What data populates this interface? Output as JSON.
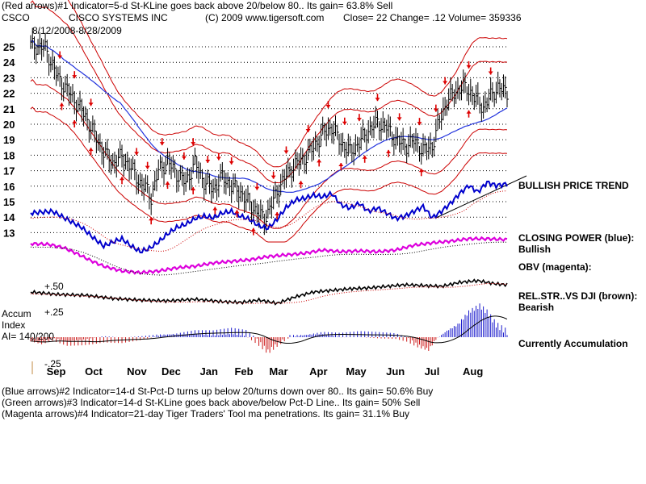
{
  "header": {
    "line1": "(Red arrows)#1 Indicator=5-d St-KLine goes back above 20/below 80.. Its gain= 63.8% Sell",
    "ticker": "CSCO",
    "company": "CISCO SYSTEMS INC",
    "copyright": "(C) 2009 www.tigersoft.com",
    "close": "Close=  22  Change= .12 Volume= 359336",
    "date_range": "8/12/2008-8/28/2009"
  },
  "footer": {
    "line1": "(Blue arrows)#2 Indicator=14-d St-Pct-D turns up below 20/turns down over 80.. Its gain= 50.6% Buy",
    "line2": "(Green arrows)#3 Indicator=14-d St-KLine goes back above/below Pct-D Line.. Its gain= 50% Sell",
    "line3": "(Magenta arrows)#4 Indicator=21-day Tiger Traders' Tool ma penetrations. Its gain= 31.1% Buy"
  },
  "labels": {
    "trend": "BULLISH PRICE TREND",
    "closing_power": "CLOSING POWER (blue):",
    "closing_power_state": "Bullish",
    "obv": "OBV (magenta):",
    "rel_str": "REL.STR..VS DJI (brown):",
    "rel_str_state": "Bearish",
    "accum": "Accum",
    "index": "Index",
    "ai": "AI= 140/200",
    "accum_state": "Currently Accumulation",
    "plus50": "+.50",
    "plus25": "+.25",
    "minus25": "-.25"
  },
  "colors": {
    "price": "#000000",
    "bands": "#cc0000",
    "ma": "#2233dd",
    "closing_power": "#0000cc",
    "obv": "#dd00dd",
    "accum_pos": "#1a1acc",
    "accum_neg": "#cc1a1a",
    "sell_arrow": "#dd0000",
    "buy_arrow": "#dd0000"
  },
  "chart_data": {
    "type": "line",
    "title": "CISCO SYSTEMS INC",
    "y_ticks": [
      25,
      24,
      23,
      22,
      21,
      20,
      19,
      18,
      17,
      16,
      15,
      14,
      13
    ],
    "ylim": [
      12.5,
      26.0
    ],
    "months": [
      "Sep",
      "Oct",
      "Nov",
      "Dec",
      "Jan",
      "Feb",
      "Mar",
      "Apr",
      "May",
      "Jun",
      "Jul",
      "Aug"
    ],
    "n_days": 262,
    "month_start_days": [
      14,
      35,
      58,
      77,
      98,
      117,
      136,
      158,
      178,
      200,
      221,
      242
    ],
    "price_knots": [
      [
        0,
        25.1
      ],
      [
        8,
        24.9
      ],
      [
        15,
        23.0
      ],
      [
        20,
        22.2
      ],
      [
        25,
        21.4
      ],
      [
        30,
        20.5
      ],
      [
        35,
        19.3
      ],
      [
        40,
        18.2
      ],
      [
        45,
        17.5
      ],
      [
        50,
        17.9
      ],
      [
        55,
        17.2
      ],
      [
        60,
        16.2
      ],
      [
        63,
        15.9
      ],
      [
        66,
        15.3
      ],
      [
        70,
        17.0
      ],
      [
        75,
        17.6
      ],
      [
        80,
        16.8
      ],
      [
        85,
        16.2
      ],
      [
        90,
        17.5
      ],
      [
        95,
        16.3
      ],
      [
        100,
        15.8
      ],
      [
        105,
        16.6
      ],
      [
        110,
        16.0
      ],
      [
        115,
        15.6
      ],
      [
        118,
        15.1
      ],
      [
        122,
        14.6
      ],
      [
        126,
        14.1
      ],
      [
        128,
        13.9
      ],
      [
        132,
        14.8
      ],
      [
        136,
        15.9
      ],
      [
        140,
        16.7
      ],
      [
        145,
        17.4
      ],
      [
        150,
        17.8
      ],
      [
        155,
        18.5
      ],
      [
        160,
        19.4
      ],
      [
        165,
        19.8
      ],
      [
        170,
        18.8
      ],
      [
        175,
        18.2
      ],
      [
        180,
        18.8
      ],
      [
        185,
        19.6
      ],
      [
        190,
        20.1
      ],
      [
        195,
        19.8
      ],
      [
        200,
        19.0
      ],
      [
        205,
        18.6
      ],
      [
        210,
        18.9
      ],
      [
        215,
        18.3
      ],
      [
        220,
        18.6
      ],
      [
        224,
        20.2
      ],
      [
        228,
        21.5
      ],
      [
        232,
        22.0
      ],
      [
        236,
        22.4
      ],
      [
        240,
        22.2
      ],
      [
        244,
        21.6
      ],
      [
        248,
        21.1
      ],
      [
        252,
        21.8
      ],
      [
        256,
        22.4
      ],
      [
        261,
        22.0
      ]
    ],
    "red_arrows_up_days": [
      16,
      24,
      33,
      58,
      64,
      72,
      84,
      89,
      97,
      103,
      110,
      124,
      133,
      140,
      152,
      163,
      172,
      180,
      190,
      202,
      213,
      222,
      227,
      240,
      252
    ],
    "buy_arrows_days": [
      17,
      24,
      33,
      50,
      66,
      75,
      89,
      101,
      113,
      122,
      135,
      148,
      158,
      170,
      183,
      196,
      214,
      240
    ],
    "closing_power_knots": [
      [
        0,
        264
      ],
      [
        12,
        262
      ],
      [
        20,
        272
      ],
      [
        28,
        282
      ],
      [
        35,
        296
      ],
      [
        40,
        305
      ],
      [
        45,
        300
      ],
      [
        50,
        296
      ],
      [
        55,
        305
      ],
      [
        60,
        312
      ],
      [
        65,
        308
      ],
      [
        70,
        300
      ],
      [
        75,
        290
      ],
      [
        80,
        282
      ],
      [
        85,
        278
      ],
      [
        90,
        271
      ],
      [
        95,
        268
      ],
      [
        100,
        270
      ],
      [
        105,
        264
      ],
      [
        110,
        262
      ],
      [
        115,
        268
      ],
      [
        120,
        272
      ],
      [
        125,
        280
      ],
      [
        130,
        283
      ],
      [
        135,
        272
      ],
      [
        140,
        257
      ],
      [
        145,
        248
      ],
      [
        150,
        246
      ],
      [
        155,
        242
      ],
      [
        160,
        244
      ],
      [
        165,
        240
      ],
      [
        170,
        254
      ],
      [
        175,
        258
      ],
      [
        180,
        252
      ],
      [
        185,
        262
      ],
      [
        190,
        258
      ],
      [
        195,
        264
      ],
      [
        200,
        271
      ],
      [
        205,
        268
      ],
      [
        210,
        262
      ],
      [
        215,
        256
      ],
      [
        220,
        270
      ],
      [
        225,
        262
      ],
      [
        230,
        252
      ],
      [
        235,
        240
      ],
      [
        240,
        230
      ],
      [
        245,
        238
      ],
      [
        250,
        226
      ],
      [
        255,
        230
      ],
      [
        261,
        228
      ]
    ],
    "obv_knots": [
      [
        0,
        302
      ],
      [
        10,
        303
      ],
      [
        18,
        307
      ],
      [
        25,
        314
      ],
      [
        32,
        322
      ],
      [
        40,
        330
      ],
      [
        50,
        336
      ],
      [
        60,
        338
      ],
      [
        70,
        336
      ],
      [
        80,
        332
      ],
      [
        90,
        330
      ],
      [
        100,
        326
      ],
      [
        110,
        324
      ],
      [
        120,
        322
      ],
      [
        130,
        318
      ],
      [
        140,
        316
      ],
      [
        150,
        314
      ],
      [
        160,
        310
      ],
      [
        170,
        312
      ],
      [
        180,
        311
      ],
      [
        190,
        312
      ],
      [
        200,
        310
      ],
      [
        210,
        304
      ],
      [
        220,
        301
      ],
      [
        230,
        299
      ],
      [
        240,
        296
      ],
      [
        250,
        296
      ],
      [
        261,
        297
      ]
    ],
    "relstr_knots": [
      [
        0,
        362
      ],
      [
        15,
        365
      ],
      [
        30,
        366
      ],
      [
        45,
        370
      ],
      [
        60,
        372
      ],
      [
        75,
        373
      ],
      [
        90,
        371
      ],
      [
        105,
        374
      ],
      [
        115,
        375
      ],
      [
        125,
        372
      ],
      [
        135,
        376
      ],
      [
        145,
        368
      ],
      [
        155,
        362
      ],
      [
        165,
        360
      ],
      [
        175,
        358
      ],
      [
        185,
        357
      ],
      [
        195,
        355
      ],
      [
        205,
        353
      ],
      [
        215,
        354
      ],
      [
        225,
        355
      ],
      [
        235,
        350
      ],
      [
        245,
        348
      ],
      [
        255,
        352
      ],
      [
        261,
        353
      ]
    ],
    "accum_knots": [
      [
        0,
        -4
      ],
      [
        6,
        -6
      ],
      [
        12,
        -2
      ],
      [
        20,
        -6
      ],
      [
        28,
        -5
      ],
      [
        33,
        -4
      ],
      [
        40,
        -2
      ],
      [
        50,
        -3
      ],
      [
        60,
        -1
      ],
      [
        70,
        2
      ],
      [
        80,
        3
      ],
      [
        90,
        5
      ],
      [
        100,
        4
      ],
      [
        110,
        6
      ],
      [
        118,
        4
      ],
      [
        124,
        -4
      ],
      [
        130,
        -14
      ],
      [
        136,
        -6
      ],
      [
        142,
        1
      ],
      [
        150,
        2
      ],
      [
        160,
        4
      ],
      [
        170,
        2
      ],
      [
        180,
        3
      ],
      [
        190,
        2
      ],
      [
        200,
        1
      ],
      [
        206,
        -2
      ],
      [
        212,
        -8
      ],
      [
        218,
        -12
      ],
      [
        222,
        -2
      ],
      [
        228,
        6
      ],
      [
        234,
        12
      ],
      [
        240,
        24
      ],
      [
        246,
        30
      ],
      [
        250,
        24
      ],
      [
        255,
        12
      ],
      [
        261,
        5
      ]
    ]
  }
}
